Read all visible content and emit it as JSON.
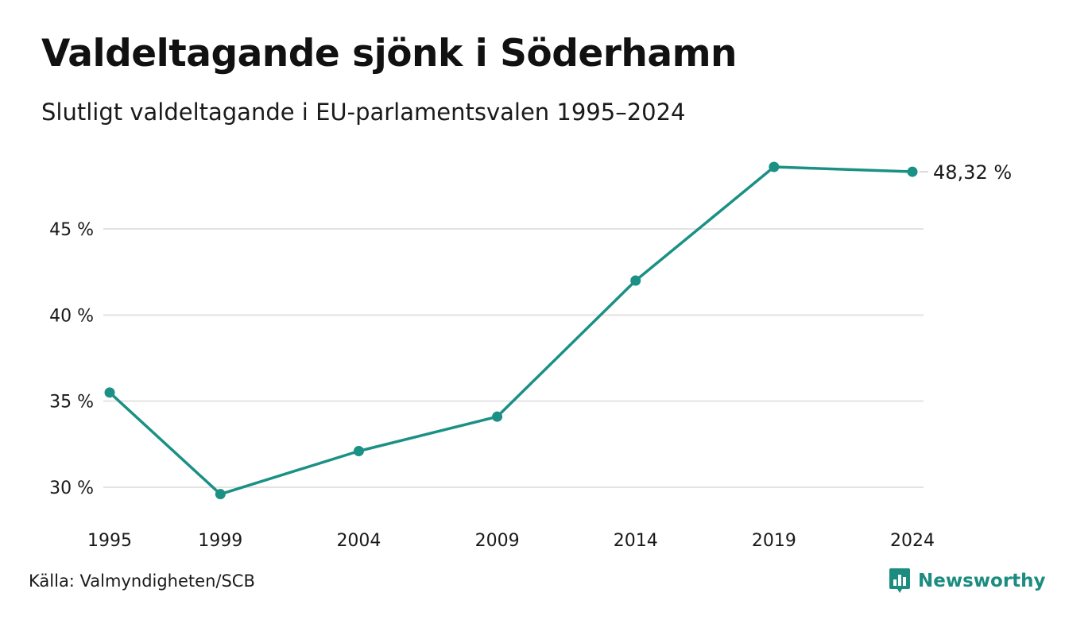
{
  "colors": {
    "line": "#1b9085",
    "grid": "#e3e3e3",
    "brand": "#1c8c80"
  },
  "source": "Källa: Valmyndigheten/SCB",
  "brand": {
    "name": "Newsworthy",
    "icon": "bar-chart-speech-bubble-icon"
  },
  "chart_data": {
    "type": "line",
    "title": "Valdeltagande sjönk i Söderhamn",
    "subtitle": "Slutligt valdeltagande i EU-parlamentsvalen 1995–2024",
    "xlabel": "",
    "ylabel": "",
    "x": [
      1995,
      1999,
      2004,
      2009,
      2014,
      2019,
      2024
    ],
    "x_tick_labels": [
      "1995",
      "1999",
      "2004",
      "2009",
      "2014",
      "2019",
      "2024"
    ],
    "y_ticks": [
      30,
      35,
      40,
      45
    ],
    "y_tick_labels": [
      "30 %",
      "35 %",
      "40 %",
      "45 %"
    ],
    "ylim": [
      28.6,
      49.5
    ],
    "grid": true,
    "legend": "none",
    "series": [
      {
        "values": [
          35.5,
          29.6,
          32.1,
          34.1,
          42.0,
          48.6,
          48.32
        ]
      }
    ],
    "end_label": "48,32 %"
  }
}
